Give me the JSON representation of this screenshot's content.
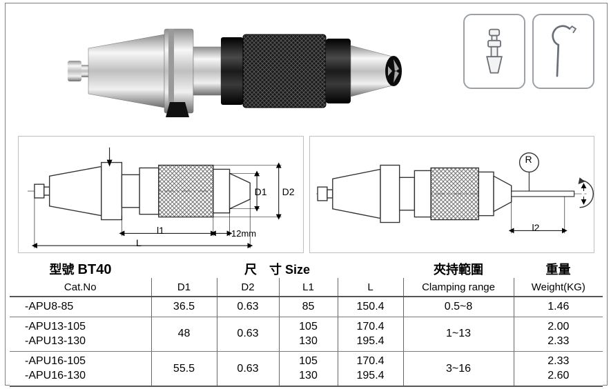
{
  "header": {
    "model_label": "型號",
    "model_value": "BT40",
    "cat_no_label": "Cat.No",
    "size_label_cjk": "尺　寸",
    "size_label_en": "Size",
    "clamp_label_cjk": "夾持範圍",
    "clamp_label_en": "Clamping range",
    "weight_label_cjk": "重量",
    "weight_label_en": "Weight(KG)",
    "cols": {
      "d1": "D1",
      "d2": "D2",
      "l1": "L1",
      "l": "L"
    }
  },
  "diagram_labels": {
    "D1": "D1",
    "D2": "D2",
    "l1": "l1",
    "twelve_mm": "12mm",
    "L": "L",
    "l2": "l2",
    "R": "R"
  },
  "rows": [
    {
      "cat": "-APU8-85",
      "d1": "36.5",
      "d2": "0.63",
      "l1": "85",
      "l": "150.4",
      "clamp": "0.5~8",
      "wt": "1.46"
    },
    {
      "cat": "-APU13-105\n-APU13-130",
      "d1": "48",
      "d2": "0.63",
      "l1": "105\n130",
      "l": "170.4\n195.4",
      "clamp": "1~13",
      "wt": "2.00\n2.33"
    },
    {
      "cat": "-APU16-105\n-APU16-130",
      "d1": "55.5",
      "d2": "0.63",
      "l1": "105\n130",
      "l": "170.4\n195.4",
      "clamp": "3~16",
      "wt": "2.33\n2.60"
    }
  ],
  "style": {
    "border_color": "#666666",
    "heavy_border_color": "#555555",
    "page_border": "#808080",
    "acc_border": "#9aa0a6",
    "text_color": "#000000",
    "bg": "#ffffff",
    "font_family": "Arial",
    "header_fontsize_pt": 14,
    "body_fontsize_pt": 12,
    "metal_silver": "#c9c9c9",
    "metal_silver_hi": "#f2f2f2",
    "metal_black": "#1a1a1a",
    "metal_black_hi": "#4a4a4a",
    "diagram_line": "#555555",
    "diagram_hatch": "#555555"
  }
}
